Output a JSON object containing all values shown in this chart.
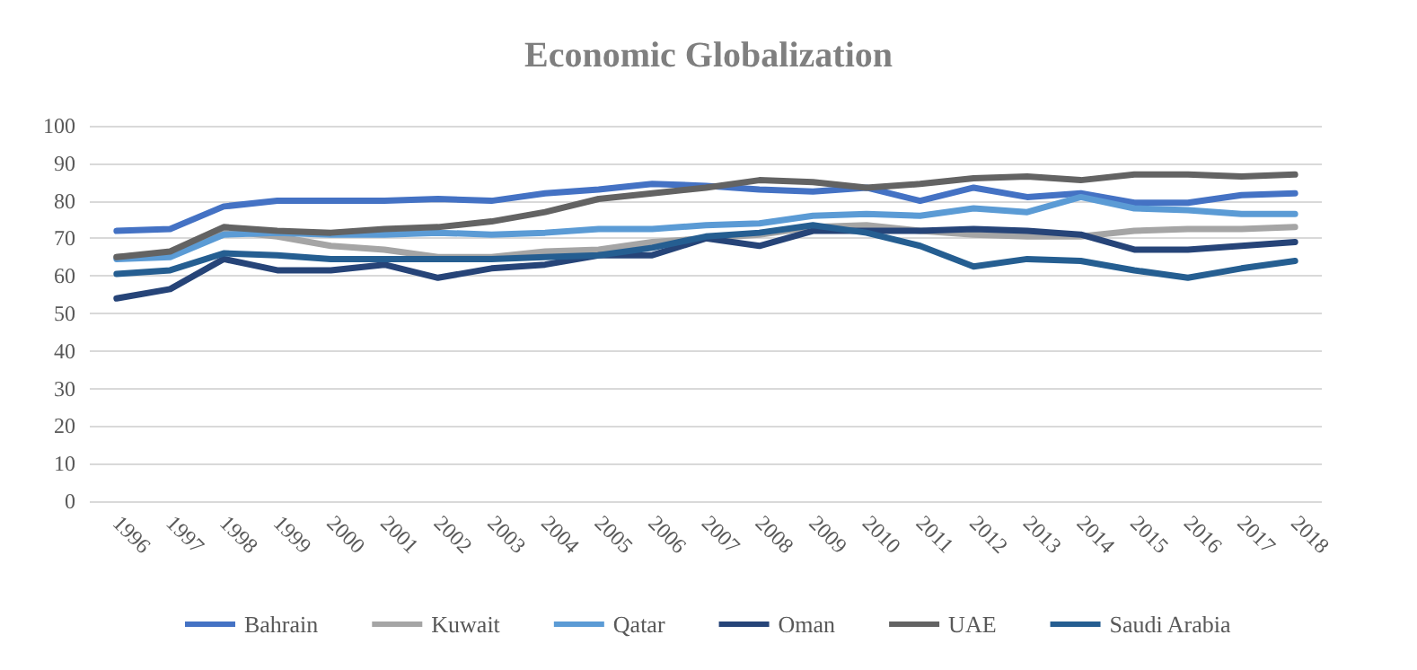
{
  "chart_data": {
    "type": "line",
    "title": "Economic Globalization",
    "categories": [
      "1996",
      "1997",
      "1998",
      "1999",
      "2000",
      "2001",
      "2002",
      "2003",
      "2004",
      "2005",
      "2006",
      "2007",
      "2008",
      "2009",
      "2010",
      "2011",
      "2012",
      "2013",
      "2014",
      "2015",
      "2016",
      "2017",
      "2018"
    ],
    "series": [
      {
        "name": "Bahrain",
        "color": "#4472c4",
        "values": [
          72,
          72.5,
          78.5,
          80,
          80,
          80,
          80.5,
          80,
          82,
          83,
          84.5,
          84,
          83,
          82.5,
          83.5,
          80,
          83.5,
          81,
          82,
          79.5,
          79.5,
          81.5,
          82
        ]
      },
      {
        "name": "Kuwait",
        "color": "#a5a5a5",
        "values": [
          65,
          66,
          72,
          70.5,
          68,
          67,
          65,
          65,
          66.5,
          67,
          69,
          70,
          71,
          73,
          73.5,
          72,
          71,
          70.5,
          70.5,
          72,
          72.5,
          72.5,
          73
        ]
      },
      {
        "name": "Qatar",
        "color": "#5b9bd5",
        "values": [
          64.5,
          65,
          71,
          71.5,
          71,
          71,
          71.5,
          71,
          71.5,
          72.5,
          72.5,
          73.5,
          74,
          76,
          76.5,
          76,
          78,
          77,
          81,
          78,
          77.5,
          76.5,
          76.5
        ]
      },
      {
        "name": "Oman",
        "color": "#264478",
        "values": [
          54,
          56.5,
          64.5,
          61.5,
          61.5,
          63,
          59.5,
          62,
          63,
          65.5,
          65.5,
          70,
          68,
          72,
          72,
          72,
          72.5,
          72,
          71,
          67,
          67,
          68,
          69
        ]
      },
      {
        "name": "UAE",
        "color": "#636363",
        "values": [
          65,
          66.5,
          73,
          72,
          71.5,
          72.5,
          73,
          74.5,
          77,
          80.5,
          82,
          83.5,
          85.5,
          85,
          83.5,
          84.5,
          86,
          86.5,
          85.5,
          87,
          87,
          86.5,
          87
        ]
      },
      {
        "name": "Saudi Arabia",
        "color": "#255e91",
        "values": [
          60.5,
          61.5,
          66,
          65.5,
          64.5,
          64.5,
          64.5,
          64.5,
          65,
          65.5,
          67.5,
          70.5,
          71.5,
          73.5,
          71.5,
          68,
          62.5,
          64.5,
          64,
          61.5,
          59.5,
          62,
          64
        ]
      }
    ],
    "ylim": [
      0,
      100
    ],
    "yticks": [
      0,
      10,
      20,
      30,
      40,
      50,
      60,
      70,
      80,
      90,
      100
    ],
    "grid": "y",
    "legend": "bottom",
    "marker": "none",
    "line_style": "solid"
  }
}
